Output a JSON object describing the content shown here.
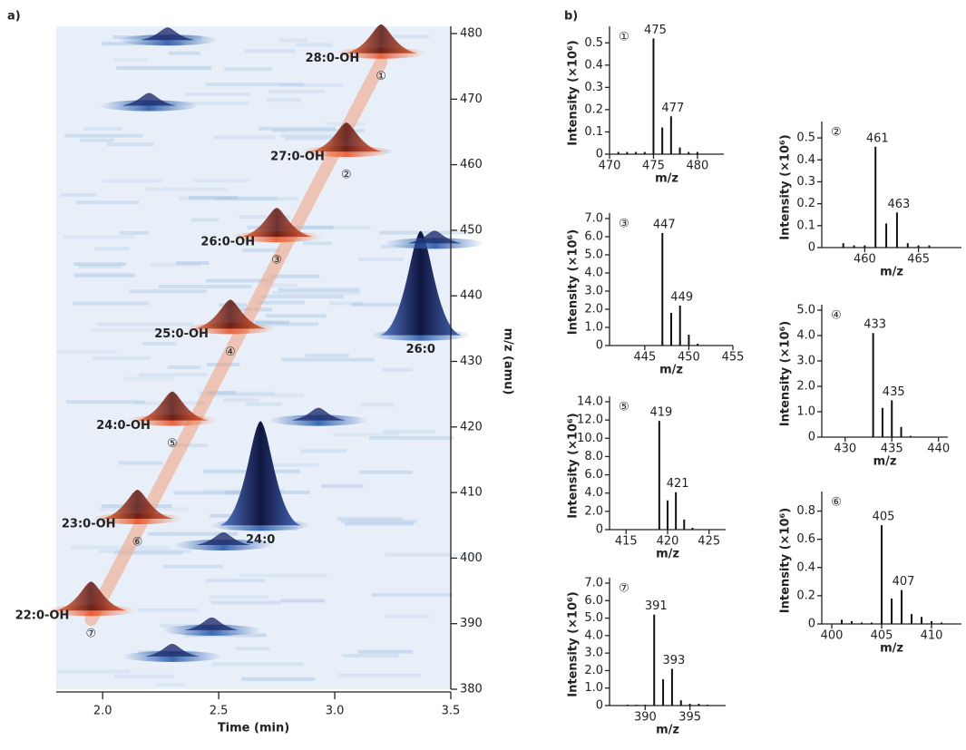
{
  "chart_data": [
    {
      "type": "peak-map",
      "panel": "a)",
      "xlabel": "Time (min)",
      "ylabel": "m/z (amu)",
      "xlim": [
        1.8,
        3.5
      ],
      "xticks": [
        {
          "value": 2,
          "label": "2.0"
        },
        {
          "value": 2.5,
          "label": "2.5"
        },
        {
          "value": 3,
          "label": "3.0"
        },
        {
          "value": 3.5,
          "label": "3.5"
        }
      ],
      "ylim": [
        380,
        480
      ],
      "yticks": [
        380,
        390,
        400,
        410,
        420,
        430,
        440,
        450,
        460,
        470,
        480
      ],
      "hydroxy_peaks": {
        "color": "#e8542a",
        "label_color": "#a8322d",
        "labels": [
          "28:0-OH",
          "27:0-OH",
          "26:0-OH",
          "25:0-OH",
          "24:0-OH",
          "23:0-OH",
          "22:0-OH"
        ],
        "markers": [
          "①",
          "②",
          "③",
          "④",
          "⑤",
          "⑥",
          "⑦"
        ],
        "x": [
          3.2,
          3.05,
          2.75,
          2.55,
          2.3,
          2.15,
          1.95
        ],
        "y": [
          477,
          462,
          449,
          435,
          421,
          406,
          392
        ]
      },
      "peaks": {
        "color": "#1f2d6e",
        "labels": [
          "26:0",
          "24:0",
          null,
          null,
          null,
          null,
          null,
          null,
          null
        ],
        "x": [
          3.37,
          2.68,
          2.28,
          2.2,
          2.93,
          2.52,
          2.47,
          2.3,
          3.43
        ],
        "y": [
          434,
          405,
          479,
          469,
          421,
          402,
          389,
          385,
          448
        ]
      }
    },
    {
      "type": "spectrum",
      "panel": "b)",
      "marker": "①",
      "xlabel": "m/z",
      "ylabel": "Intensity (×10⁶)",
      "xlim": [
        470,
        483
      ],
      "xticks": [
        470,
        475,
        480
      ],
      "ylim": [
        0,
        0.55
      ],
      "yticks": [
        0,
        0.1,
        0.2,
        0.3,
        0.4,
        0.5
      ],
      "x": [
        471,
        472,
        473,
        474,
        475,
        476,
        477,
        478,
        479,
        480
      ],
      "values": [
        0.01,
        0.01,
        0.01,
        0.01,
        0.52,
        0.12,
        0.17,
        0.03,
        0.01,
        0.01
      ],
      "peak_labels": [
        475,
        477
      ]
    },
    {
      "type": "spectrum",
      "marker": "②",
      "xlabel": "m/z",
      "ylabel": "Intensity (×10⁶)",
      "xlim": [
        456,
        469
      ],
      "xticks": [
        460,
        465
      ],
      "ylim": [
        0,
        0.55
      ],
      "yticks": [
        0,
        0.1,
        0.2,
        0.3,
        0.4,
        0.5
      ],
      "x": [
        458,
        459,
        460,
        461,
        462,
        463,
        464,
        465,
        466
      ],
      "values": [
        0.02,
        0.01,
        0.01,
        0.46,
        0.11,
        0.16,
        0.02,
        0.01,
        0.01
      ],
      "peak_labels": [
        461,
        463
      ]
    },
    {
      "type": "spectrum",
      "marker": "③",
      "xlabel": "m/z",
      "ylabel": "Intensity (×10⁶)",
      "xlim": [
        441,
        455
      ],
      "xticks": [
        445,
        450,
        455
      ],
      "ylim": [
        0,
        7
      ],
      "yticks": [
        0,
        {
          "value": 1,
          "label": "1.0"
        },
        {
          "value": 2,
          "label": "2.0"
        },
        {
          "value": 3,
          "label": "3.0"
        },
        {
          "value": 4,
          "label": "4.0"
        },
        {
          "value": 5,
          "label": "5.0"
        },
        {
          "value": 6,
          "label": "6.0"
        },
        {
          "value": 7,
          "label": "7.0"
        }
      ],
      "x": [
        447,
        448,
        449,
        450,
        451
      ],
      "values": [
        6.2,
        1.8,
        2.2,
        0.6,
        0.1
      ],
      "peak_labels": [
        447,
        449
      ]
    },
    {
      "type": "spectrum",
      "marker": "④",
      "xlabel": "m/z",
      "ylabel": "Intensity (×10⁶)",
      "xlim": [
        427.5,
        441
      ],
      "xticks": [
        430,
        435,
        440
      ],
      "ylim": [
        0,
        5
      ],
      "yticks": [
        0,
        {
          "value": 1,
          "label": "1.0"
        },
        {
          "value": 2,
          "label": "2.0"
        },
        {
          "value": 3,
          "label": "3.0"
        },
        {
          "value": 4,
          "label": "4.0"
        },
        {
          "value": 5,
          "label": "5.0"
        }
      ],
      "x": [
        433,
        434,
        435,
        436,
        437
      ],
      "values": [
        4.1,
        1.15,
        1.45,
        0.4,
        0.05
      ],
      "peak_labels": [
        433,
        435
      ]
    },
    {
      "type": "spectrum",
      "marker": "⑤",
      "xlabel": "m/z",
      "ylabel": "Intensity (×10⁶)",
      "xlim": [
        413,
        427
      ],
      "xticks": [
        415,
        420,
        425
      ],
      "ylim": [
        0,
        14
      ],
      "yticks": [
        0,
        {
          "value": 2,
          "label": "2.0"
        },
        {
          "value": 4,
          "label": "4.0"
        },
        {
          "value": 6,
          "label": "6.0"
        },
        {
          "value": 8,
          "label": "8.0"
        },
        {
          "value": 10,
          "label": "10.0"
        },
        {
          "value": 12,
          "label": "12.0"
        },
        {
          "value": 14,
          "label": "14.0"
        }
      ],
      "x": [
        419,
        420,
        421,
        422,
        423
      ],
      "values": [
        11.9,
        3.2,
        4.1,
        1.1,
        0.2
      ],
      "peak_labels": [
        419,
        421
      ]
    },
    {
      "type": "spectrum",
      "marker": "⑥",
      "xlabel": "m/z",
      "ylabel": "Intensity (×10⁶)",
      "xlim": [
        399,
        413
      ],
      "xticks": [
        400,
        405,
        410
      ],
      "ylim": [
        0,
        0.9
      ],
      "yticks": [
        0,
        0.2,
        0.4,
        0.6,
        0.8
      ],
      "x": [
        401,
        402,
        403,
        404,
        405,
        406,
        407,
        408,
        409,
        410,
        411
      ],
      "values": [
        0.03,
        0.02,
        0.01,
        0.01,
        0.7,
        0.18,
        0.24,
        0.07,
        0.05,
        0.02,
        0.01
      ],
      "peak_labels": [
        405,
        407
      ]
    },
    {
      "type": "spectrum",
      "marker": "⑦",
      "xlabel": "m/z",
      "ylabel": "Intensity (×10⁶)",
      "xlim": [
        386,
        399
      ],
      "xticks": [
        390,
        395
      ],
      "ylim": [
        0,
        7
      ],
      "yticks": [
        0,
        {
          "value": 1,
          "label": "1.0"
        },
        {
          "value": 2,
          "label": "2.0"
        },
        {
          "value": 3,
          "label": "3.0"
        },
        {
          "value": 4,
          "label": "4.0"
        },
        {
          "value": 5,
          "label": "5.0"
        },
        {
          "value": 6,
          "label": "6.0"
        },
        {
          "value": 7,
          "label": "7.0"
        }
      ],
      "x": [
        388,
        389,
        390,
        391,
        392,
        393,
        394,
        395,
        396,
        397
      ],
      "values": [
        0.05,
        0.05,
        0.05,
        5.2,
        1.5,
        2.1,
        0.3,
        0.1,
        0.1,
        0.05
      ],
      "peak_labels": [
        391,
        393
      ]
    }
  ]
}
